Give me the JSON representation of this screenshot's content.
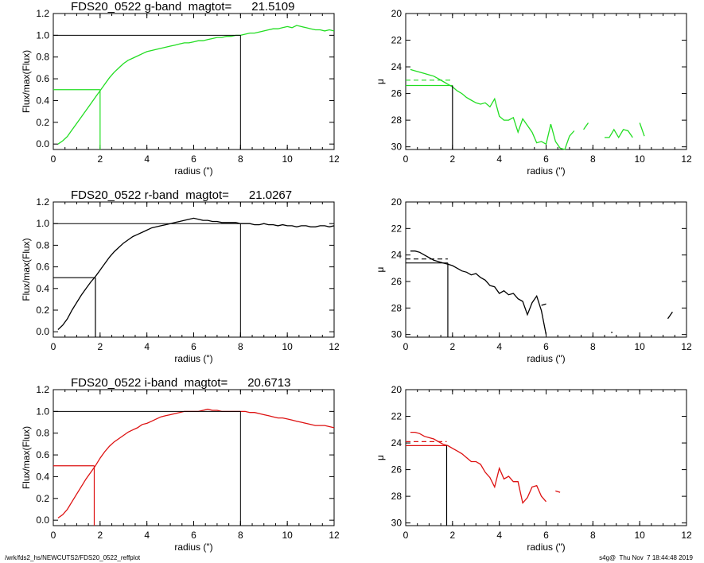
{
  "footer": {
    "path": "/wrk/fds2_hs/NEWCUTS2/FDS20_0522_reffplot",
    "stamp": "s4g@  Thu Nov  7 18:44:48 2019"
  },
  "colors": {
    "g": "#22dd22",
    "r": "#000000",
    "i": "#dd1111",
    "axis": "#000000"
  },
  "chart_data": [
    {
      "type": "line",
      "band": "g",
      "title": "FDS20_0522 g-band  magtot=      21.5109",
      "xlabel": "radius (\")",
      "ylabel": "Flux/max(Flux)",
      "xlim": [
        0,
        12
      ],
      "ylim": [
        -0.05,
        1.2
      ],
      "xticks": [
        "0",
        "2",
        "4",
        "6",
        "8",
        "10",
        "12"
      ],
      "yticks": [
        "0.0",
        "0.2",
        "0.4",
        "0.6",
        "0.8",
        "1.0",
        "1.2"
      ],
      "series": [
        {
          "x": [
            0.2,
            0.4,
            0.6,
            0.8,
            1.0,
            1.2,
            1.4,
            1.6,
            1.8,
            2.0,
            2.2,
            2.4,
            2.6,
            2.8,
            3.0,
            3.2,
            3.4,
            3.6,
            3.8,
            4.0,
            4.2,
            4.4,
            4.6,
            4.8,
            5.0,
            5.2,
            5.4,
            5.6,
            5.8,
            6.0,
            6.2,
            6.4,
            6.6,
            6.8,
            7.0,
            7.2,
            7.4,
            7.6,
            7.8,
            8.0,
            8.2,
            8.4,
            8.6,
            8.8,
            9.0,
            9.2,
            9.4,
            9.6,
            9.8,
            10.0,
            10.2,
            10.4,
            10.6,
            10.8,
            11.0,
            11.2,
            11.4,
            11.6,
            11.8,
            12.0
          ],
          "y": [
            0.0,
            0.03,
            0.07,
            0.13,
            0.19,
            0.25,
            0.31,
            0.37,
            0.43,
            0.49,
            0.55,
            0.61,
            0.66,
            0.7,
            0.74,
            0.77,
            0.79,
            0.81,
            0.83,
            0.85,
            0.86,
            0.87,
            0.88,
            0.89,
            0.9,
            0.91,
            0.92,
            0.93,
            0.93,
            0.94,
            0.95,
            0.95,
            0.96,
            0.97,
            0.98,
            0.98,
            0.99,
            0.99,
            1.0,
            1.0,
            1.01,
            1.02,
            1.02,
            1.03,
            1.04,
            1.05,
            1.06,
            1.06,
            1.07,
            1.08,
            1.07,
            1.09,
            1.08,
            1.07,
            1.06,
            1.05,
            1.05,
            1.04,
            1.05,
            1.04
          ]
        }
      ],
      "reff": 2.0,
      "rtot": 8.0
    },
    {
      "type": "line",
      "band": "g",
      "xlabel": "radius (\")",
      "ylabel": "μ",
      "xlim": [
        0,
        12
      ],
      "ylim": [
        30.2,
        20
      ],
      "xticks": [
        "0",
        "2",
        "4",
        "6",
        "8",
        "10",
        "12"
      ],
      "yticks": [
        "20",
        "22",
        "24",
        "26",
        "28",
        "30"
      ],
      "series": [
        {
          "x": [
            0.2,
            0.4,
            0.6,
            0.8,
            1.0,
            1.2,
            1.4,
            1.6,
            1.8,
            2.0,
            2.2,
            2.4,
            2.6,
            2.8,
            3.0,
            3.2,
            3.4,
            3.6,
            3.8,
            4.0,
            4.2,
            4.4,
            4.6,
            4.8,
            5.0,
            5.2,
            5.4,
            5.6,
            5.8,
            6.0,
            6.2,
            6.4,
            6.6,
            6.8,
            7.0,
            7.2,
            null,
            7.6,
            7.8,
            null,
            8.5,
            8.7,
            8.9,
            9.1,
            9.3,
            9.5,
            9.7,
            null,
            10.0,
            10.2
          ],
          "y": [
            24.2,
            24.3,
            24.4,
            24.5,
            24.6,
            24.7,
            24.9,
            25.1,
            25.3,
            25.5,
            25.8,
            26.0,
            26.3,
            26.5,
            26.7,
            26.8,
            26.7,
            27.0,
            26.4,
            27.7,
            28.0,
            28.0,
            27.8,
            28.9,
            27.9,
            28.4,
            28.9,
            29.7,
            29.6,
            29.8,
            28.3,
            29.6,
            30.1,
            30.2,
            29.2,
            28.8,
            null,
            28.7,
            28.2,
            null,
            29.3,
            29.3,
            28.7,
            29.3,
            28.7,
            28.8,
            29.3,
            null,
            28.2,
            29.2
          ]
        }
      ],
      "reff": 2.0,
      "mu_eff": 25.4,
      "mu_mean": 25.0
    },
    {
      "type": "line",
      "band": "r",
      "title": "FDS20_0522 r-band  magtot=      21.0267",
      "xlabel": "radius (\")",
      "ylabel": "Flux/max(Flux)",
      "xlim": [
        0,
        12
      ],
      "ylim": [
        -0.05,
        1.2
      ],
      "xticks": [
        "0",
        "2",
        "4",
        "6",
        "8",
        "10",
        "12"
      ],
      "yticks": [
        "0.0",
        "0.2",
        "0.4",
        "0.6",
        "0.8",
        "1.0",
        "1.2"
      ],
      "series": [
        {
          "x": [
            0.2,
            0.4,
            0.6,
            0.8,
            1.0,
            1.2,
            1.4,
            1.6,
            1.8,
            2.0,
            2.2,
            2.4,
            2.6,
            2.8,
            3.0,
            3.2,
            3.4,
            3.6,
            3.8,
            4.0,
            4.2,
            4.4,
            4.6,
            4.8,
            5.0,
            5.2,
            5.4,
            5.6,
            5.8,
            6.0,
            6.2,
            6.4,
            6.6,
            6.8,
            7.0,
            7.2,
            7.4,
            7.6,
            7.8,
            8.0,
            8.2,
            8.4,
            8.6,
            8.8,
            9.0,
            9.2,
            9.4,
            9.6,
            9.8,
            10.0,
            10.2,
            10.4,
            10.6,
            10.8,
            11.0,
            11.2,
            11.4,
            11.6,
            11.8,
            12.0
          ],
          "y": [
            0.02,
            0.06,
            0.12,
            0.2,
            0.27,
            0.34,
            0.4,
            0.46,
            0.51,
            0.57,
            0.63,
            0.69,
            0.74,
            0.78,
            0.82,
            0.85,
            0.88,
            0.9,
            0.92,
            0.94,
            0.96,
            0.97,
            0.98,
            0.99,
            1.0,
            1.01,
            1.02,
            1.03,
            1.04,
            1.05,
            1.04,
            1.03,
            1.03,
            1.02,
            1.02,
            1.01,
            1.01,
            1.01,
            1.01,
            1.0,
            1.0,
            1.0,
            0.99,
            0.99,
            1.0,
            0.99,
            0.99,
            0.98,
            0.99,
            0.98,
            0.98,
            0.97,
            0.98,
            0.98,
            0.97,
            0.97,
            0.98,
            0.98,
            0.97,
            0.98
          ]
        }
      ],
      "reff": 1.8,
      "rtot": 8.0
    },
    {
      "type": "line",
      "band": "r",
      "xlabel": "radius (\")",
      "ylabel": "μ",
      "xlim": [
        0,
        12
      ],
      "ylim": [
        30.2,
        20
      ],
      "xticks": [
        "0",
        "2",
        "4",
        "6",
        "8",
        "10",
        "12"
      ],
      "yticks": [
        "20",
        "22",
        "24",
        "26",
        "28",
        "30"
      ],
      "series": [
        {
          "x": [
            0.2,
            0.4,
            0.6,
            0.8,
            1.0,
            1.2,
            1.4,
            1.6,
            1.8,
            2.0,
            2.2,
            2.4,
            2.6,
            2.8,
            3.0,
            3.2,
            3.4,
            3.6,
            3.8,
            4.0,
            4.2,
            4.4,
            4.6,
            4.8,
            5.0,
            5.2,
            5.4,
            5.6,
            5.8,
            6.0,
            null,
            8.8,
            8.81,
            null,
            11.2,
            11.4
          ],
          "y": [
            23.7,
            23.7,
            23.8,
            24.0,
            24.2,
            24.4,
            24.5,
            24.6,
            24.7,
            24.8,
            25.0,
            25.2,
            25.3,
            25.5,
            25.4,
            25.7,
            25.9,
            26.3,
            26.4,
            26.9,
            26.7,
            27.0,
            26.9,
            27.3,
            27.5,
            28.5,
            27.6,
            27.1,
            28.2,
            30.0,
            null,
            29.8,
            29.9,
            null,
            28.8,
            28.3
          ]
        },
        {
          "x": [
            5.8,
            6.0
          ],
          "y": [
            27.8,
            27.7
          ]
        }
      ],
      "reff": 1.8,
      "mu_eff": 24.6,
      "mu_mean": 24.3
    },
    {
      "type": "line",
      "band": "i",
      "title": "FDS20_0522 i-band  magtot=      20.6713",
      "xlabel": "radius (\")",
      "ylabel": "Flux/max(Flux)",
      "xlim": [
        0,
        12
      ],
      "ylim": [
        -0.05,
        1.2
      ],
      "xticks": [
        "0",
        "2",
        "4",
        "6",
        "8",
        "10",
        "12"
      ],
      "yticks": [
        "0.0",
        "0.2",
        "0.4",
        "0.6",
        "0.8",
        "1.0",
        "1.2"
      ],
      "series": [
        {
          "x": [
            0.2,
            0.4,
            0.6,
            0.8,
            1.0,
            1.2,
            1.4,
            1.6,
            1.8,
            2.0,
            2.2,
            2.4,
            2.6,
            2.8,
            3.0,
            3.2,
            3.4,
            3.6,
            3.8,
            4.0,
            4.2,
            4.4,
            4.6,
            4.8,
            5.0,
            5.2,
            5.4,
            5.6,
            5.8,
            6.0,
            6.2,
            6.4,
            6.6,
            6.8,
            7.0,
            7.2,
            7.4,
            7.6,
            7.8,
            8.0,
            8.2,
            8.4,
            8.6,
            8.8,
            9.0,
            9.2,
            9.4,
            9.6,
            9.8,
            10.0,
            10.2,
            10.4,
            10.6,
            10.8,
            11.0,
            11.2,
            11.4,
            11.6,
            11.8,
            12.0
          ],
          "y": [
            0.02,
            0.05,
            0.1,
            0.17,
            0.24,
            0.31,
            0.38,
            0.44,
            0.5,
            0.57,
            0.63,
            0.68,
            0.72,
            0.75,
            0.78,
            0.81,
            0.83,
            0.85,
            0.88,
            0.89,
            0.91,
            0.93,
            0.95,
            0.96,
            0.97,
            0.98,
            0.99,
            1.0,
            1.0,
            1.0,
            1.0,
            1.01,
            1.02,
            1.01,
            1.01,
            1.0,
            1.0,
            1.0,
            1.0,
            1.0,
            1.0,
            0.99,
            0.99,
            0.98,
            0.97,
            0.96,
            0.95,
            0.94,
            0.94,
            0.93,
            0.92,
            0.91,
            0.9,
            0.89,
            0.88,
            0.87,
            0.87,
            0.87,
            0.86,
            0.85
          ]
        }
      ],
      "reff": 1.75,
      "rtot": 8.0
    },
    {
      "type": "line",
      "band": "i",
      "xlabel": "radius (\")",
      "ylabel": "μ",
      "xlim": [
        0,
        12
      ],
      "ylim": [
        30.2,
        20
      ],
      "xticks": [
        "0",
        "2",
        "4",
        "6",
        "8",
        "10",
        "12"
      ],
      "yticks": [
        "20",
        "22",
        "24",
        "26",
        "28",
        "30"
      ],
      "series": [
        {
          "x": [
            0.2,
            0.4,
            0.6,
            0.8,
            1.0,
            1.2,
            1.4,
            1.6,
            1.8,
            2.0,
            2.2,
            2.4,
            2.6,
            2.8,
            3.0,
            3.2,
            3.4,
            3.6,
            3.8,
            4.0,
            4.2,
            4.4,
            4.6,
            4.8,
            5.0,
            5.2,
            5.4,
            5.6,
            5.8,
            6.0,
            null,
            6.4,
            6.6
          ],
          "y": [
            23.2,
            23.2,
            23.3,
            23.5,
            23.6,
            23.7,
            23.9,
            24.1,
            24.2,
            24.4,
            24.6,
            24.8,
            25.1,
            25.4,
            25.4,
            25.6,
            26.2,
            26.6,
            27.3,
            25.9,
            26.7,
            26.5,
            26.9,
            26.9,
            28.5,
            28.1,
            27.3,
            27.2,
            28.0,
            28.4,
            null,
            27.6,
            27.7
          ]
        }
      ],
      "reff": 1.75,
      "mu_eff": 24.2,
      "mu_mean": 23.9
    }
  ]
}
